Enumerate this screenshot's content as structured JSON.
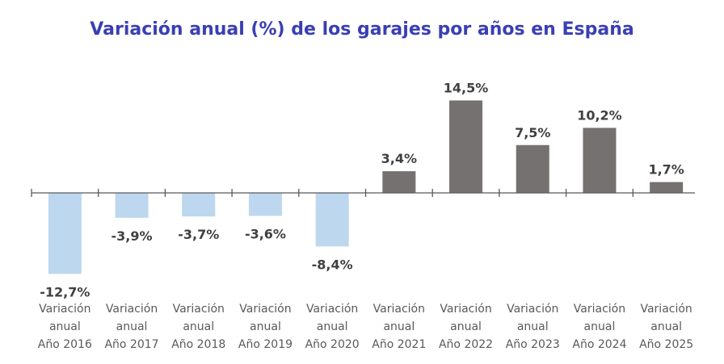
{
  "chart_data": {
    "type": "bar",
    "title": "Variación anual (%) de los garajes por años en España",
    "categories": [
      [
        "Variación",
        "anual",
        "Año 2016"
      ],
      [
        "Variación",
        "anual",
        "Año 2017"
      ],
      [
        "Variación",
        "anual",
        "Año 2018"
      ],
      [
        "Variación",
        "anual",
        "Año 2019"
      ],
      [
        "Variación",
        "anual",
        "Año 2020"
      ],
      [
        "Variación",
        "anual",
        "Año 2021"
      ],
      [
        "Variación",
        "anual",
        "Año 2022"
      ],
      [
        "Variación",
        "anual",
        "Año 2023"
      ],
      [
        "Variación",
        "anual",
        "Año 2024"
      ],
      [
        "Variación",
        "anual",
        "Año 2025"
      ]
    ],
    "values": [
      -12.7,
      -3.9,
      -3.7,
      -3.6,
      -8.4,
      3.4,
      14.5,
      7.5,
      10.2,
      1.7
    ],
    "data_labels": [
      "-12,7%",
      "-3,9%",
      "-3,7%",
      "-3,6%",
      "-8,4%",
      "3,4%",
      "14,5%",
      "7,5%",
      "10,2%",
      "1,7%"
    ],
    "colors": {
      "negative": "#bdd7ee",
      "positive": "#767171",
      "title": "#3a3fb3"
    },
    "xlabel": "",
    "ylabel": "",
    "grid": false,
    "legend": "none"
  }
}
